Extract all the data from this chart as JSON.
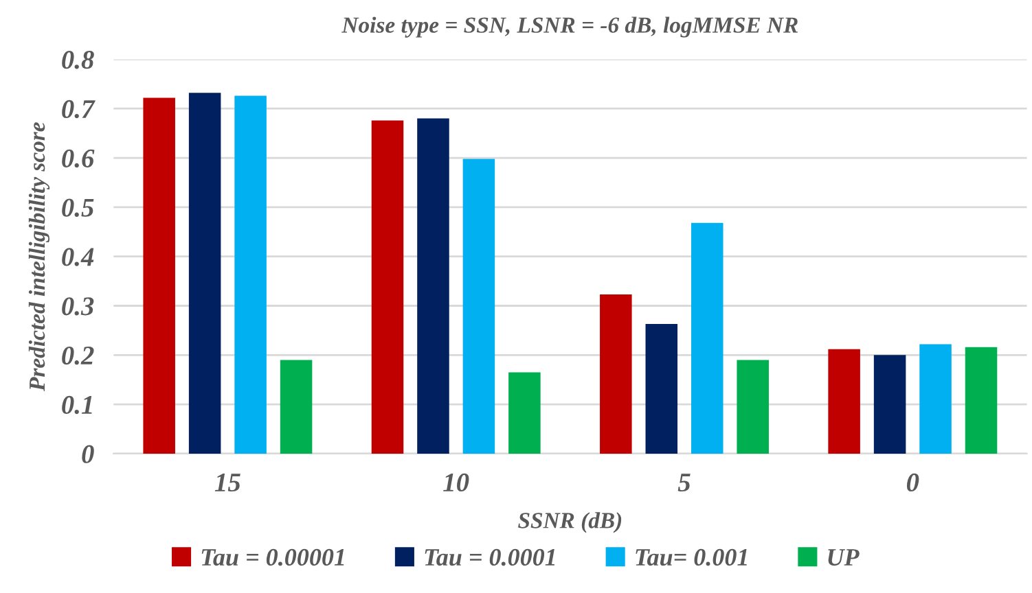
{
  "chart_data": {
    "type": "bar",
    "title": "Noise type = SSN, LSNR = -6 dB, logMMSE NR",
    "xlabel": "SSNR (dB)",
    "ylabel": "Predicted intelligibility score",
    "categories": [
      "15",
      "10",
      "5",
      "0"
    ],
    "series": [
      {
        "name": "Tau = 0.00001",
        "color": "#c00000",
        "values": [
          0.722,
          0.676,
          0.323,
          0.212
        ]
      },
      {
        "name": "Tau = 0.0001",
        "color": "#002060",
        "values": [
          0.732,
          0.68,
          0.263,
          0.2
        ]
      },
      {
        "name": "Tau= 0.001",
        "color": "#00b0f0",
        "values": [
          0.726,
          0.598,
          0.468,
          0.222
        ]
      },
      {
        "name": "UP",
        "color": "#00b050",
        "values": [
          0.19,
          0.165,
          0.19,
          0.216
        ]
      }
    ],
    "ylim": [
      0,
      0.8
    ],
    "yticks": [
      {
        "value": 0,
        "label": "0"
      },
      0.1,
      0.2,
      0.3,
      0.4,
      0.5,
      0.6,
      0.7,
      0.8
    ],
    "grid": "y",
    "legend": "bottom"
  }
}
